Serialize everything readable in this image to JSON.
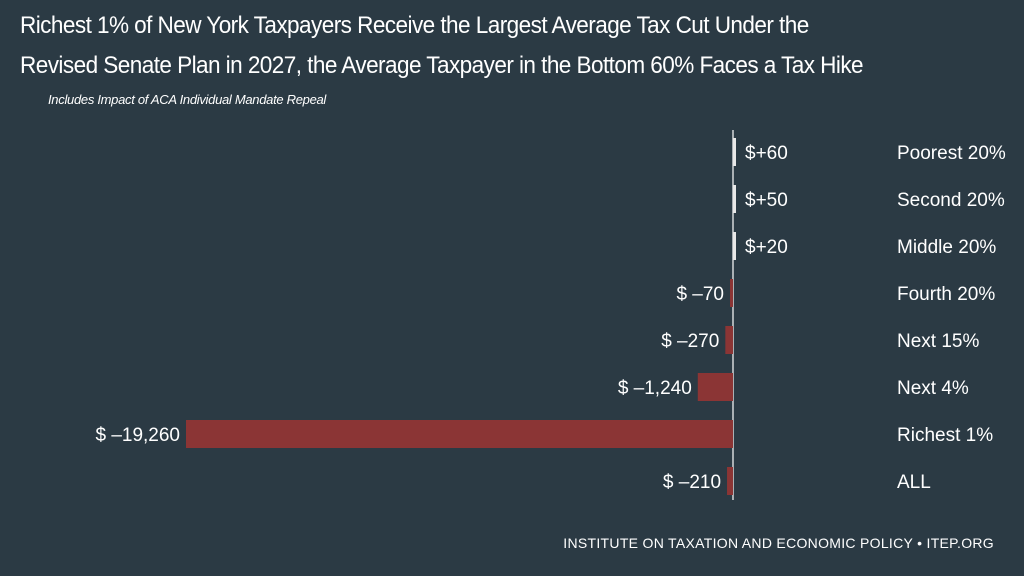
{
  "chart_data": {
    "type": "bar",
    "orientation": "horizontal",
    "title_lines": [
      "Richest 1% of New York Taxpayers Receive the Largest Average Tax Cut Under the",
      "Revised Senate Plan in 2027, the Average Taxpayer in the Bottom 60% Faces a Tax Hike"
    ],
    "subtitle": "Includes Impact of ACA Individual Mandate Repeal",
    "categories": [
      "Poorest 20%",
      "Second 20%",
      "Middle 20%",
      "Fourth 20%",
      "Next 15%",
      "Next 4%",
      "Richest 1%",
      "ALL"
    ],
    "values": [
      60,
      50,
      20,
      -70,
      -270,
      -1240,
      -19260,
      -210
    ],
    "value_labels": [
      "$+60",
      "$+50",
      "$+20",
      "$ –70",
      "$ –270",
      "$ –1,240",
      "$ –19,260",
      "$ –210"
    ],
    "colors": {
      "negative": "#8b3535",
      "positive": "#e8e8e8"
    }
  },
  "footer": "INSTITUTE ON TAXATION AND ECONOMIC POLICY • ITEP.ORG"
}
